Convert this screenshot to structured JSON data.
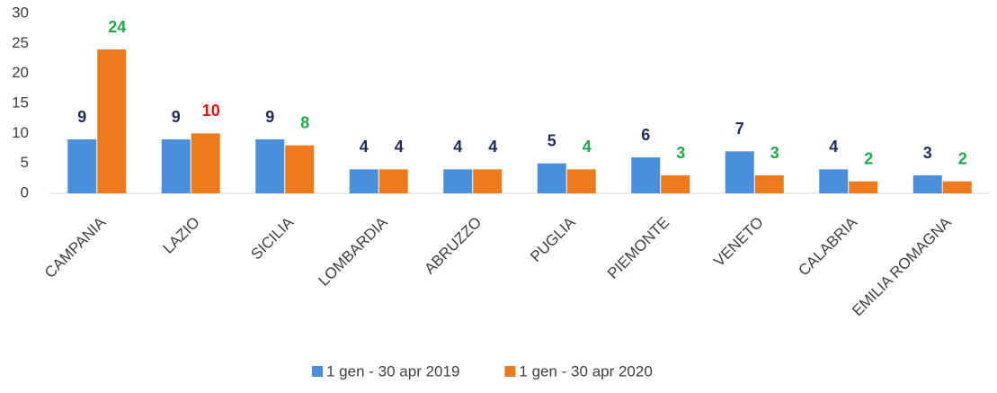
{
  "chart_data": {
    "type": "bar",
    "categories": [
      "CAMPANIA",
      "LAZIO",
      "SICILIA",
      "LOMBARDIA",
      "ABRUZZO",
      "PUGLIA",
      "PIEMONTE",
      "VENETO",
      "CALABRIA",
      "EMILIA ROMAGNA"
    ],
    "series": [
      {
        "name": "1 gen - 30 apr 2019",
        "color": "#4a8fdb",
        "values": [
          9,
          9,
          9,
          4,
          4,
          5,
          6,
          7,
          4,
          3
        ],
        "label_colors": [
          "#1f2d5c",
          "#1f2d5c",
          "#1f2d5c",
          "#1f2d5c",
          "#1f2d5c",
          "#1f2d5c",
          "#1f2d5c",
          "#1f2d5c",
          "#1f2d5c",
          "#1f2d5c"
        ]
      },
      {
        "name": "1 gen - 30 apr 2020",
        "color": "#ee7a1e",
        "values": [
          24,
          10,
          8,
          4,
          4,
          4,
          3,
          3,
          2,
          2
        ],
        "label_colors": [
          "#1ea84a",
          "#e81010",
          "#1ea84a",
          "#1f2d5c",
          "#1f2d5c",
          "#1ea84a",
          "#1ea84a",
          "#1ea84a",
          "#1ea84a",
          "#1ea84a"
        ]
      }
    ],
    "ylim": [
      0,
      30
    ],
    "yticks": [
      0,
      5,
      10,
      15,
      20,
      25,
      30
    ],
    "grid": false,
    "legend": "bottom"
  }
}
